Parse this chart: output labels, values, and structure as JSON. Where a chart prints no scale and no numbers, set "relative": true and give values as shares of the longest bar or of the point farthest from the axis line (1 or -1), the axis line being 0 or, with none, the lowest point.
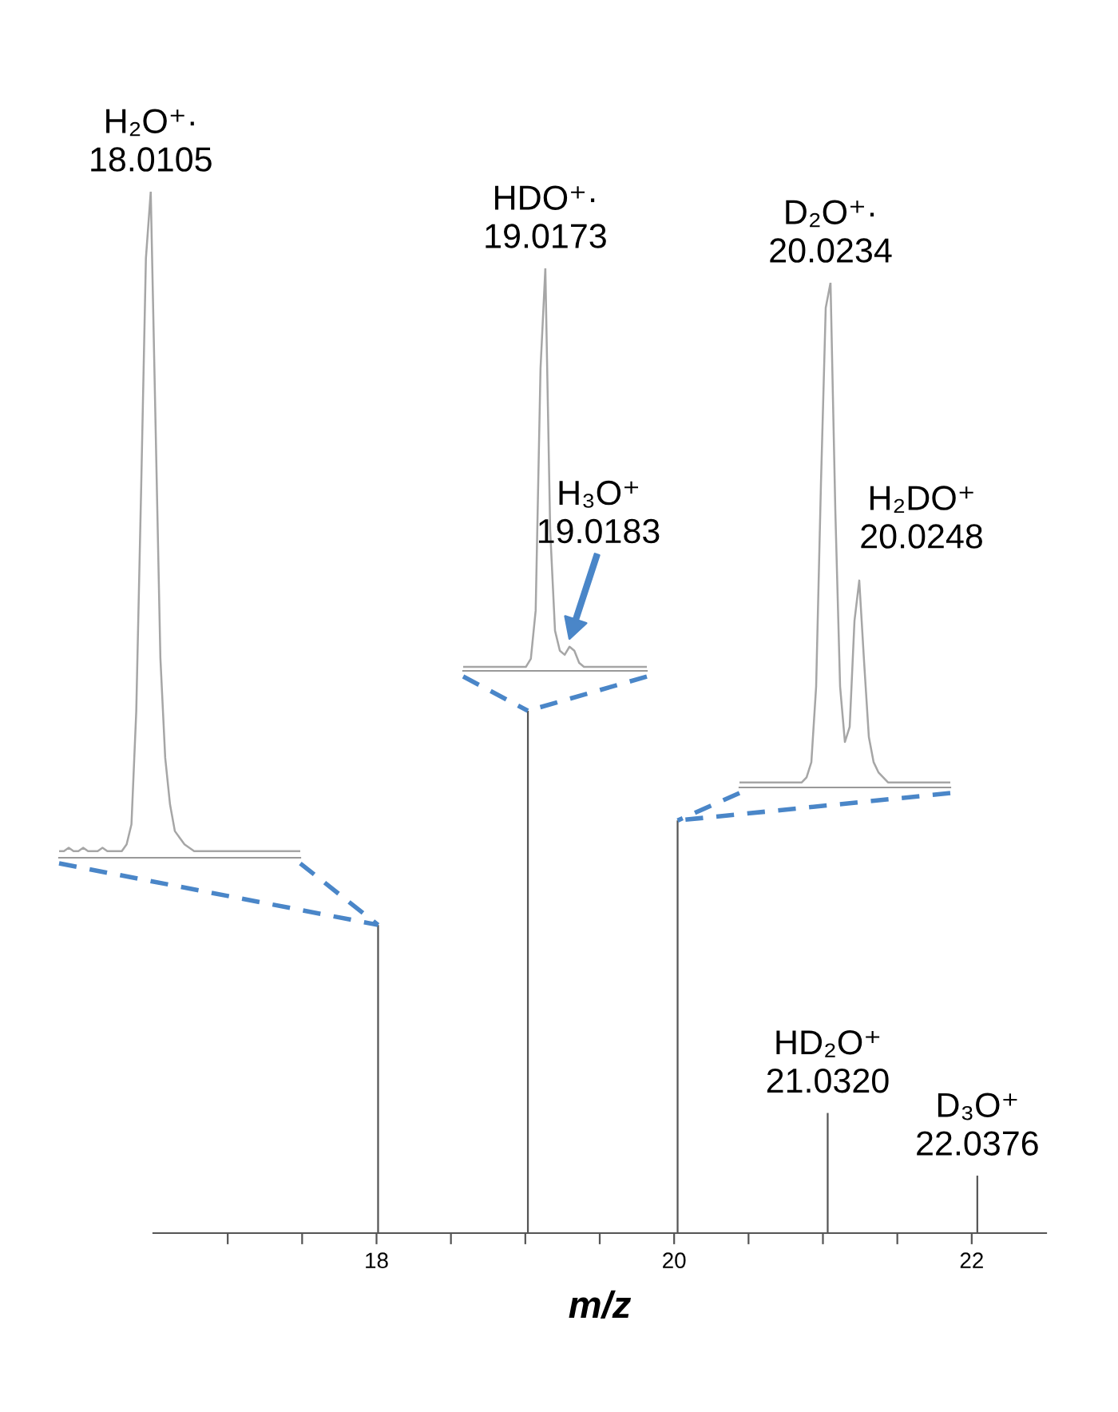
{
  "chart_data": [
    {
      "type": "bar",
      "x": [
        18.0105,
        19.0173,
        20.0234,
        21.032,
        22.0376
      ],
      "values": [
        0.59,
        1,
        0.79,
        0.23,
        0.11
      ],
      "color": "#555555",
      "relative": true,
      "xlim": [
        16.5,
        22.5
      ],
      "xticks": [
        {
          "value": 17,
          "label": null
        },
        {
          "value": 17.5,
          "label": null
        },
        18,
        {
          "value": 18.5,
          "label": null
        },
        {
          "value": 19,
          "label": null
        },
        {
          "value": 19.5,
          "label": null
        },
        20,
        {
          "value": 20.5,
          "label": null
        },
        {
          "value": 21,
          "label": null
        },
        {
          "value": 21.5,
          "label": null
        },
        22
      ],
      "xlabel": "m/z",
      "tick_labels": "x",
      "annotations": [
        {
          "text": "HD₂O⁺\n21.0320",
          "x": 21.032,
          "y": 0.23
        },
        {
          "text": "D₃O⁺\n22.0376",
          "x": 22.0376,
          "y": 0.11
        }
      ]
    },
    {
      "type": "line",
      "color": "#a6a6a6",
      "relative": true,
      "tick_labels": false,
      "categories": [
        null,
        null,
        null,
        null,
        null,
        null,
        null,
        null,
        null,
        null,
        null,
        null,
        null,
        null,
        null,
        null,
        null,
        null,
        null,
        null,
        null,
        null,
        null,
        null,
        null,
        null,
        null,
        null,
        null,
        null,
        null,
        null,
        null,
        null,
        null,
        null,
        null,
        null,
        null,
        null,
        null,
        null,
        null,
        null,
        null,
        null,
        null,
        null,
        null,
        null,
        null
      ],
      "values": [
        0.01,
        0.01,
        0.015,
        0.01,
        0.01,
        0.015,
        0.01,
        0.01,
        0.01,
        0.015,
        0.01,
        0.01,
        0.01,
        0.01,
        0.02,
        0.05,
        0.22,
        0.55,
        0.9,
        1,
        0.65,
        0.3,
        0.15,
        0.08,
        0.04,
        0.03,
        0.02,
        0.015,
        0.01,
        0.01,
        0.01,
        0.01,
        0.01,
        0.01,
        0.01,
        0.01,
        0.01,
        0.01,
        0.01,
        0.01,
        0.01,
        0.01,
        0.01,
        0.01,
        0.01,
        0.01,
        0.01,
        0.01,
        0.01,
        0.01,
        0.01
      ],
      "annotations": [
        "H₂O⁺·\n18.0105"
      ]
    },
    {
      "type": "line",
      "color": "#a6a6a6",
      "relative": true,
      "tick_labels": false,
      "categories": [
        null,
        null,
        null,
        null,
        null,
        null,
        null,
        null,
        null,
        null,
        null,
        null,
        null,
        null,
        null,
        null,
        null,
        null,
        null,
        null,
        null,
        null,
        null,
        null,
        null,
        null,
        null,
        null,
        null,
        null,
        null,
        null,
        null,
        null,
        null,
        null,
        null,
        null,
        null
      ],
      "values": [
        0.01,
        0.01,
        0.01,
        0.01,
        0.01,
        0.01,
        0.01,
        0.01,
        0.01,
        0.01,
        0.01,
        0.01,
        0.01,
        0.01,
        0.03,
        0.15,
        0.75,
        1,
        0.35,
        0.1,
        0.05,
        0.04,
        0.06,
        0.05,
        0.02,
        0.01,
        0.01,
        0.01,
        0.01,
        0.01,
        0.01,
        0.01,
        0.01,
        0.01,
        0.01,
        0.01,
        0.01,
        0.01,
        0.01
      ],
      "annotations": [
        "HDO⁺·\n19.0173",
        "H₃O⁺\n19.0183"
      ]
    },
    {
      "type": "line",
      "color": "#a6a6a6",
      "relative": true,
      "tick_labels": false,
      "categories": [
        null,
        null,
        null,
        null,
        null,
        null,
        null,
        null,
        null,
        null,
        null,
        null,
        null,
        null,
        null,
        null,
        null,
        null,
        null,
        null,
        null,
        null,
        null,
        null,
        null,
        null,
        null,
        null,
        null,
        null,
        null,
        null,
        null,
        null,
        null,
        null,
        null,
        null,
        null,
        null,
        null,
        null,
        null,
        null,
        null
      ],
      "values": [
        0.01,
        0.01,
        0.01,
        0.01,
        0.01,
        0.01,
        0.01,
        0.01,
        0.01,
        0.01,
        0.01,
        0.01,
        0.01,
        0.01,
        0.02,
        0.05,
        0.2,
        0.6,
        0.95,
        1,
        0.55,
        0.2,
        0.09,
        0.12,
        0.33,
        0.41,
        0.25,
        0.1,
        0.05,
        0.03,
        0.02,
        0.01,
        0.01,
        0.01,
        0.01,
        0.01,
        0.01,
        0.01,
        0.01,
        0.01,
        0.01,
        0.01,
        0.01,
        0.01,
        0.01
      ],
      "annotations": [
        "D₂O⁺·\n20.0234",
        "H₂DO⁺\n20.0248"
      ]
    }
  ]
}
